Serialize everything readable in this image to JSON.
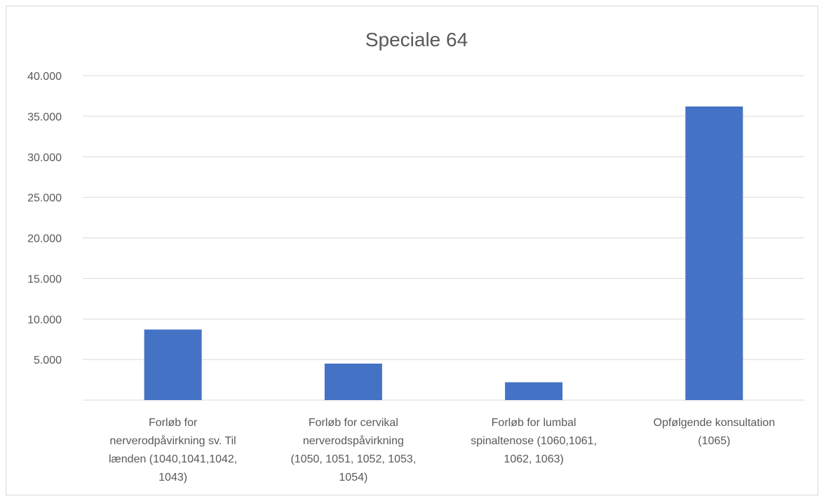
{
  "chart_data": {
    "type": "bar",
    "title": "Speciale 64",
    "xlabel": "",
    "ylabel": "",
    "categories": [
      [
        "Forløb for",
        "nerverodpåvirkning sv. Til",
        "lænden (1040,1041,1042,",
        "1043)"
      ],
      [
        "Forløb for cervikal",
        "nerverodspåvirkning",
        "(1050, 1051, 1052, 1053,",
        "1054)"
      ],
      [
        "Forløb for lumbal",
        "spinaltenose (1060,1061,",
        "1062, 1063)"
      ],
      [
        "Opfølgende konsultation",
        "(1065)"
      ]
    ],
    "series": [
      {
        "values": [
          8700,
          4500,
          2200,
          36200
        ],
        "color": "#4472c4"
      }
    ],
    "ylim": [
      0,
      40000
    ],
    "yticks": [
      {
        "value": 5000,
        "label": "5.000"
      },
      {
        "value": 10000,
        "label": "10.000"
      },
      {
        "value": 15000,
        "label": "15.000"
      },
      {
        "value": 20000,
        "label": "20.000"
      },
      {
        "value": 25000,
        "label": "25.000"
      },
      {
        "value": 30000,
        "label": "30.000"
      },
      {
        "value": 35000,
        "label": "35.000"
      },
      {
        "value": 40000,
        "label": "40.000"
      }
    ],
    "grid": true,
    "gridColor": "#d9d9d9",
    "textColor": "#595959",
    "legend": "none"
  }
}
